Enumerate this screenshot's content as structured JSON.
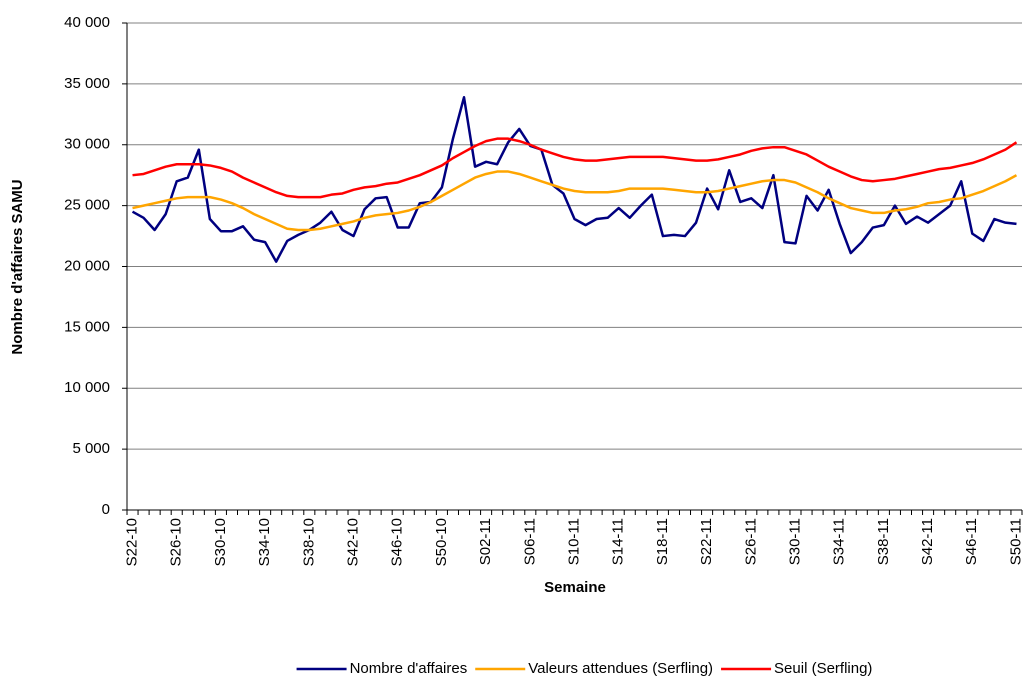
{
  "chart_data": {
    "type": "line",
    "y_label": "Nombre d'affaires SAMU",
    "x_label": "Semaine",
    "categories": [
      "S22-10",
      null,
      null,
      null,
      "S26-10",
      null,
      null,
      null,
      "S30-10",
      null,
      null,
      null,
      "S34-10",
      null,
      null,
      null,
      "S38-10",
      null,
      null,
      null,
      "S42-10",
      null,
      null,
      null,
      "S46-10",
      null,
      null,
      null,
      "S50-10",
      null,
      null,
      null,
      "S02-11",
      null,
      null,
      null,
      "S06-11",
      null,
      null,
      null,
      "S10-11",
      null,
      null,
      null,
      "S14-11",
      null,
      null,
      null,
      "S18-11",
      null,
      null,
      null,
      "S22-11",
      null,
      null,
      null,
      "S26-11",
      null,
      null,
      null,
      "S30-11",
      null,
      null,
      null,
      "S34-11",
      null,
      null,
      null,
      "S38-11",
      null,
      null,
      null,
      "S42-11",
      null,
      null,
      null,
      "S46-11",
      null,
      null,
      null,
      "S50-11"
    ],
    "series": [
      {
        "name": "Nombre d'affaires",
        "color": "#000080",
        "values": [
          24500,
          24000,
          23000,
          24300,
          27000,
          27300,
          29600,
          23900,
          22900,
          22900,
          23300,
          22200,
          22000,
          20400,
          22100,
          22600,
          23000,
          23600,
          24500,
          23000,
          22500,
          24700,
          25600,
          25700,
          23200,
          23200,
          25200,
          25300,
          26500,
          30500,
          33900,
          28200,
          28600,
          28400,
          30200,
          31300,
          29900,
          29600,
          26700,
          26000,
          23900,
          23400,
          23900,
          24000,
          24800,
          24000,
          25000,
          25900,
          22500,
          22600,
          22500,
          23600,
          26400,
          24700,
          27900,
          25300,
          25600,
          24800,
          27500,
          22000,
          21900,
          25800,
          24600,
          26300,
          23500,
          21100,
          22000,
          23200,
          23400,
          25000,
          23500,
          24100,
          23600,
          24300,
          25000,
          27000,
          22700,
          22100,
          23900,
          23600,
          23500
        ]
      },
      {
        "name": "Valeurs attendues (Serfling)",
        "color": "#ffa500",
        "values": [
          24800,
          25000,
          25200,
          25400,
          25600,
          25700,
          25700,
          25700,
          25500,
          25200,
          24800,
          24300,
          23900,
          23500,
          23100,
          23000,
          23000,
          23100,
          23300,
          23500,
          23700,
          24000,
          24200,
          24300,
          24400,
          24600,
          24900,
          25300,
          25800,
          26300,
          26800,
          27300,
          27600,
          27800,
          27800,
          27600,
          27300,
          27000,
          26700,
          26400,
          26200,
          26100,
          26100,
          26100,
          26200,
          26400,
          26400,
          26400,
          26400,
          26300,
          26200,
          26100,
          26100,
          26200,
          26400,
          26600,
          26800,
          27000,
          27100,
          27100,
          26900,
          26500,
          26100,
          25600,
          25200,
          24800,
          24600,
          24400,
          24400,
          24600,
          24700,
          24900,
          25200,
          25300,
          25500,
          25600,
          25900,
          26200,
          26600,
          27000,
          27500
        ]
      },
      {
        "name": "Seuil (Serfling)",
        "color": "#ff0000",
        "values": [
          27500,
          27600,
          27900,
          28200,
          28400,
          28400,
          28400,
          28300,
          28100,
          27800,
          27300,
          26900,
          26500,
          26100,
          25800,
          25700,
          25700,
          25700,
          25900,
          26000,
          26300,
          26500,
          26600,
          26800,
          26900,
          27200,
          27500,
          27900,
          28300,
          28900,
          29400,
          29900,
          30300,
          30500,
          30500,
          30300,
          30000,
          29600,
          29300,
          29000,
          28800,
          28700,
          28700,
          28800,
          28900,
          29000,
          29000,
          29000,
          29000,
          28900,
          28800,
          28700,
          28700,
          28800,
          29000,
          29200,
          29500,
          29700,
          29800,
          29800,
          29500,
          29200,
          28700,
          28200,
          27800,
          27400,
          27100,
          27000,
          27100,
          27200,
          27400,
          27600,
          27800,
          28000,
          28100,
          28300,
          28500,
          28800,
          29200,
          29600,
          30200
        ]
      }
    ],
    "ylim": [
      0,
      40000
    ],
    "yticks": [
      0,
      {
        "value": 5000,
        "label": "5 000"
      },
      {
        "value": 10000,
        "label": "10 000"
      },
      {
        "value": 15000,
        "label": "15 000"
      },
      {
        "value": 20000,
        "label": "20 000"
      },
      {
        "value": 25000,
        "label": "25 000"
      },
      {
        "value": 30000,
        "label": "30 000"
      },
      {
        "value": 35000,
        "label": "35 000"
      },
      {
        "value": 40000,
        "label": "40 000"
      }
    ],
    "grid": true,
    "legend": "bottom"
  }
}
